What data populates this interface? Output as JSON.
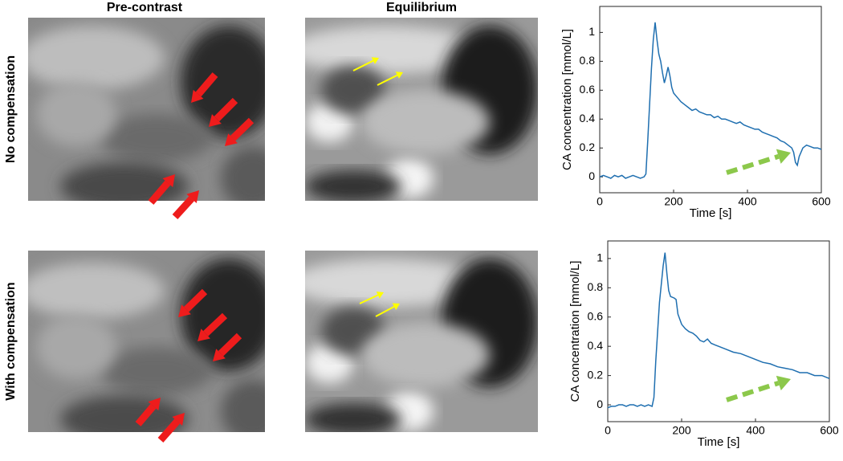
{
  "column_titles": [
    "Pre-contrast",
    "Equilibrium"
  ],
  "row_titles": [
    "No compensation",
    "With compensation"
  ],
  "chart_data": [
    {
      "type": "line",
      "xlabel": "Time [s]",
      "ylabel": "CA concentration [mmol/L]",
      "x": [
        0,
        10,
        20,
        30,
        40,
        50,
        60,
        70,
        80,
        90,
        100,
        110,
        120,
        125,
        130,
        135,
        140,
        145,
        150,
        155,
        160,
        165,
        170,
        175,
        180,
        185,
        190,
        195,
        200,
        210,
        220,
        230,
        240,
        250,
        260,
        270,
        280,
        290,
        300,
        310,
        320,
        330,
        340,
        350,
        360,
        370,
        380,
        390,
        400,
        410,
        420,
        430,
        440,
        450,
        460,
        470,
        480,
        490,
        500,
        510,
        520,
        525,
        530,
        535,
        540,
        550,
        560,
        570,
        580,
        590,
        600
      ],
      "series": [
        {
          "color": "#1f6fb0",
          "values": [
            0,
            0.01,
            0,
            -0.01,
            0.01,
            0,
            0.01,
            -0.01,
            0,
            0.01,
            0,
            -0.01,
            0,
            0.02,
            0.25,
            0.5,
            0.75,
            0.95,
            1.07,
            0.95,
            0.85,
            0.8,
            0.72,
            0.65,
            0.7,
            0.76,
            0.7,
            0.62,
            0.58,
            0.55,
            0.52,
            0.5,
            0.48,
            0.46,
            0.47,
            0.45,
            0.44,
            0.43,
            0.43,
            0.41,
            0.42,
            0.4,
            0.4,
            0.39,
            0.38,
            0.37,
            0.38,
            0.36,
            0.35,
            0.34,
            0.33,
            0.33,
            0.31,
            0.3,
            0.29,
            0.28,
            0.27,
            0.25,
            0.24,
            0.22,
            0.2,
            0.17,
            0.1,
            0.08,
            0.14,
            0.2,
            0.22,
            0.21,
            0.2,
            0.2,
            0.19
          ]
        }
      ],
      "xlim": [
        0,
        600
      ],
      "xticks": [
        0,
        200,
        400,
        600
      ],
      "ylim": [
        -0.11,
        1.18
      ],
      "yticks": [
        0,
        0.2,
        0.4,
        0.6,
        0.8,
        1
      ]
    },
    {
      "type": "line",
      "xlabel": "Time [s]",
      "ylabel": "CA concentration [mmol/L]",
      "x": [
        0,
        10,
        20,
        30,
        40,
        50,
        60,
        70,
        80,
        90,
        100,
        110,
        120,
        125,
        130,
        140,
        150,
        155,
        160,
        165,
        170,
        180,
        185,
        190,
        200,
        210,
        220,
        230,
        240,
        250,
        260,
        270,
        280,
        290,
        300,
        320,
        340,
        360,
        380,
        400,
        420,
        440,
        460,
        480,
        500,
        520,
        540,
        560,
        580,
        600
      ],
      "series": [
        {
          "color": "#1f6fb0",
          "values": [
            -0.02,
            -0.01,
            -0.01,
            0,
            0,
            -0.01,
            0,
            0,
            -0.01,
            0,
            -0.01,
            0,
            -0.01,
            0.05,
            0.3,
            0.7,
            0.95,
            1.04,
            0.9,
            0.78,
            0.74,
            0.73,
            0.72,
            0.62,
            0.55,
            0.52,
            0.5,
            0.49,
            0.47,
            0.44,
            0.43,
            0.45,
            0.42,
            0.41,
            0.4,
            0.38,
            0.36,
            0.35,
            0.33,
            0.31,
            0.29,
            0.28,
            0.26,
            0.25,
            0.24,
            0.22,
            0.22,
            0.2,
            0.2,
            0.18
          ]
        }
      ],
      "xlim": [
        0,
        600
      ],
      "xticks": [
        0,
        200,
        400,
        600
      ],
      "ylim": [
        -0.115,
        1.12
      ],
      "yticks": [
        0,
        0.2,
        0.4,
        0.6,
        0.8,
        1
      ]
    }
  ]
}
